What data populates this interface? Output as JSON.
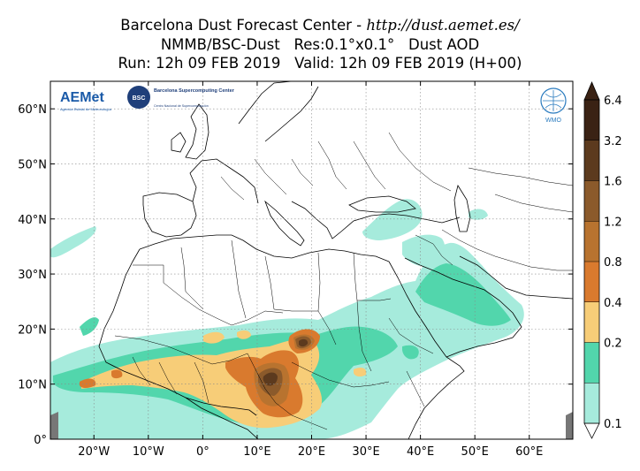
{
  "title": {
    "line1_prefix": "Barcelona Dust Forecast Center - ",
    "line1_url": "http://dust.aemet.es/",
    "line2": "NMMB/BSC-Dust   Res:0.1°x0.1°   Dust AOD",
    "line3": "Run: 12h 09 FEB 2019   Valid: 12h 09 FEB 2019 (H+00)"
  },
  "map": {
    "lon_range": [
      -28,
      68
    ],
    "lat_range": [
      0,
      65
    ],
    "lat_labels": [
      {
        "lat": 60,
        "text": "60°N"
      },
      {
        "lat": 50,
        "text": "50°N"
      },
      {
        "lat": 40,
        "text": "40°N"
      },
      {
        "lat": 30,
        "text": "30°N"
      },
      {
        "lat": 20,
        "text": "20°N"
      },
      {
        "lat": 10,
        "text": "10°N"
      },
      {
        "lat": 0,
        "text": "0°"
      }
    ],
    "lon_labels": [
      {
        "lon": -20,
        "text": "20°W"
      },
      {
        "lon": -10,
        "text": "10°W"
      },
      {
        "lon": 0,
        "text": "0°"
      },
      {
        "lon": 10,
        "text": "10°E"
      },
      {
        "lon": 20,
        "text": "20°E"
      },
      {
        "lon": 30,
        "text": "30°E"
      },
      {
        "lon": 40,
        "text": "40°E"
      },
      {
        "lon": 50,
        "text": "50°E"
      },
      {
        "lon": 60,
        "text": "60°E"
      }
    ],
    "grid": true
  },
  "colorbar": {
    "levels": [
      {
        "value": "6.4",
        "color": "#3a2214"
      },
      {
        "value": "3.2",
        "color": "#5c3a1e"
      },
      {
        "value": "1.6",
        "color": "#8b5a2b"
      },
      {
        "value": "1.2",
        "color": "#b8732f"
      },
      {
        "value": "0.8",
        "color": "#d97a2e"
      },
      {
        "value": "0.4",
        "color": "#f7cd78"
      },
      {
        "value": "0.2",
        "color": "#52d6ac"
      },
      {
        "value": "0.1",
        "color": "#a6ebdc"
      }
    ]
  },
  "logos": {
    "aemet": "AEMet",
    "aemet_sub": "Agencia Estatal de Meteorología",
    "bsc": "BSC",
    "bsc_name": "Barcelona Supercomputing Center",
    "bsc_sub": "Centro Nacional de Supercomputación",
    "wmo": "WMO"
  },
  "colors": {
    "aod_0_1": "#a6ebdc",
    "aod_0_2": "#52d6ac",
    "aod_0_4": "#f7cd78",
    "aod_0_8": "#d97a2e",
    "aod_1_2": "#b8732f",
    "aod_1_6": "#8b5a2b",
    "aod_3_2": "#5c3a1e",
    "aod_6_4": "#3a2214"
  }
}
